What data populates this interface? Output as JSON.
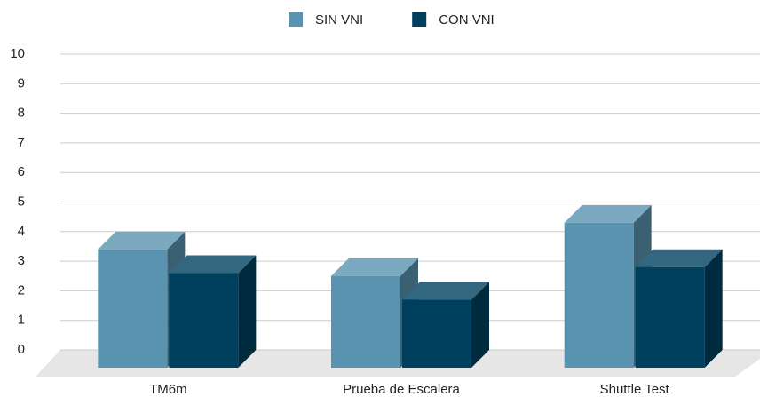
{
  "chart_data": {
    "type": "bar3d",
    "categories": [
      "TM6m",
      "Prueba de Escalera",
      "Shuttle Test"
    ],
    "series": [
      {
        "name": "SIN VNI",
        "color": "#5a93b0",
        "values": [
          4.0,
          3.1,
          4.9
        ]
      },
      {
        "name": "CON VNI",
        "color": "#00405f",
        "values": [
          3.2,
          2.3,
          3.4
        ]
      }
    ],
    "ylim": [
      0,
      10
    ],
    "yticks": [
      0,
      1,
      2,
      3,
      4,
      5,
      6,
      7,
      8,
      9,
      10
    ],
    "grid": true,
    "legend": "top"
  }
}
